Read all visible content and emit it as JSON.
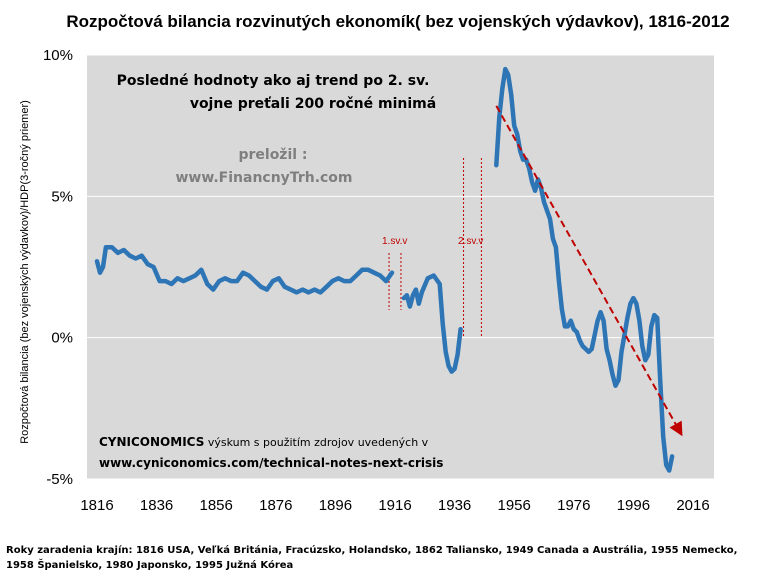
{
  "chart_data": {
    "type": "line",
    "title": "Rozpočtová bilancia rozvinutých ekonomík( bez vojenských výdavkov), 1816-2012",
    "ylabel": "Rozpočtová bilancia (bez vojenských výdavkov)/HDP(3-ročný priemer)",
    "xlabel": "",
    "xlim": [
      1816,
      2016
    ],
    "ylim": [
      -5,
      10
    ],
    "x_ticks": [
      "1816",
      "1836",
      "1856",
      "1876",
      "1896",
      "1916",
      "1936",
      "1956",
      "1976",
      "1996",
      "2016"
    ],
    "y_ticks": [
      "10%",
      "5%",
      "0%",
      "-5%"
    ],
    "grid": "horizontal",
    "background": "#d9d9d9",
    "line_color": "#2e75b6",
    "trend_color": "#c00000",
    "series": [
      {
        "values": [
          {
            "x": 1816,
            "y": 2.7
          },
          {
            "x": 1817,
            "y": 2.3
          },
          {
            "x": 1818,
            "y": 2.5
          },
          {
            "x": 1819,
            "y": 3.2
          },
          {
            "x": 1821,
            "y": 3.2
          },
          {
            "x": 1823,
            "y": 3.0
          },
          {
            "x": 1825,
            "y": 3.1
          },
          {
            "x": 1827,
            "y": 2.9
          },
          {
            "x": 1829,
            "y": 2.8
          },
          {
            "x": 1831,
            "y": 2.9
          },
          {
            "x": 1833,
            "y": 2.6
          },
          {
            "x": 1835,
            "y": 2.5
          },
          {
            "x": 1837,
            "y": 2.0
          },
          {
            "x": 1839,
            "y": 2.0
          },
          {
            "x": 1841,
            "y": 1.9
          },
          {
            "x": 1843,
            "y": 2.1
          },
          {
            "x": 1845,
            "y": 2.0
          },
          {
            "x": 1847,
            "y": 2.1
          },
          {
            "x": 1849,
            "y": 2.2
          },
          {
            "x": 1851,
            "y": 2.4
          },
          {
            "x": 1853,
            "y": 1.9
          },
          {
            "x": 1855,
            "y": 1.7
          },
          {
            "x": 1857,
            "y": 2.0
          },
          {
            "x": 1859,
            "y": 2.1
          },
          {
            "x": 1861,
            "y": 2.0
          },
          {
            "x": 1863,
            "y": 2.0
          },
          {
            "x": 1865,
            "y": 2.3
          },
          {
            "x": 1867,
            "y": 2.2
          },
          {
            "x": 1869,
            "y": 2.0
          },
          {
            "x": 1871,
            "y": 1.8
          },
          {
            "x": 1873,
            "y": 1.7
          },
          {
            "x": 1875,
            "y": 2.0
          },
          {
            "x": 1877,
            "y": 2.1
          },
          {
            "x": 1879,
            "y": 1.8
          },
          {
            "x": 1881,
            "y": 1.7
          },
          {
            "x": 1883,
            "y": 1.6
          },
          {
            "x": 1885,
            "y": 1.7
          },
          {
            "x": 1887,
            "y": 1.6
          },
          {
            "x": 1889,
            "y": 1.7
          },
          {
            "x": 1891,
            "y": 1.6
          },
          {
            "x": 1893,
            "y": 1.8
          },
          {
            "x": 1895,
            "y": 2.0
          },
          {
            "x": 1897,
            "y": 2.1
          },
          {
            "x": 1899,
            "y": 2.0
          },
          {
            "x": 1901,
            "y": 2.0
          },
          {
            "x": 1903,
            "y": 2.2
          },
          {
            "x": 1905,
            "y": 2.4
          },
          {
            "x": 1907,
            "y": 2.4
          },
          {
            "x": 1909,
            "y": 2.3
          },
          {
            "x": 1911,
            "y": 2.2
          },
          {
            "x": 1913,
            "y": 2.0
          },
          {
            "x": 1915,
            "y": 2.3
          }
        ]
      },
      {
        "values": [
          {
            "x": 1919,
            "y": 1.4
          },
          {
            "x": 1920,
            "y": 1.5
          },
          {
            "x": 1921,
            "y": 1.1
          },
          {
            "x": 1922,
            "y": 1.5
          },
          {
            "x": 1923,
            "y": 1.7
          },
          {
            "x": 1924,
            "y": 1.2
          },
          {
            "x": 1925,
            "y": 1.6
          },
          {
            "x": 1927,
            "y": 2.1
          },
          {
            "x": 1929,
            "y": 2.2
          },
          {
            "x": 1931,
            "y": 1.9
          },
          {
            "x": 1932,
            "y": 0.5
          },
          {
            "x": 1933,
            "y": -0.5
          },
          {
            "x": 1934,
            "y": -1.0
          },
          {
            "x": 1935,
            "y": -1.2
          },
          {
            "x": 1936,
            "y": -1.1
          },
          {
            "x": 1937,
            "y": -0.6
          },
          {
            "x": 1938,
            "y": 0.3
          }
        ]
      },
      {
        "values": [
          {
            "x": 1950,
            "y": 6.1
          },
          {
            "x": 1951,
            "y": 7.8
          },
          {
            "x": 1952,
            "y": 8.8
          },
          {
            "x": 1953,
            "y": 9.5
          },
          {
            "x": 1954,
            "y": 9.3
          },
          {
            "x": 1955,
            "y": 8.6
          },
          {
            "x": 1956,
            "y": 7.5
          },
          {
            "x": 1957,
            "y": 7.2
          },
          {
            "x": 1958,
            "y": 6.6
          },
          {
            "x": 1959,
            "y": 6.3
          },
          {
            "x": 1960,
            "y": 6.3
          },
          {
            "x": 1961,
            "y": 6.0
          },
          {
            "x": 1962,
            "y": 5.5
          },
          {
            "x": 1963,
            "y": 5.2
          },
          {
            "x": 1964,
            "y": 5.6
          },
          {
            "x": 1965,
            "y": 5.3
          },
          {
            "x": 1966,
            "y": 4.8
          },
          {
            "x": 1967,
            "y": 4.5
          },
          {
            "x": 1968,
            "y": 4.2
          },
          {
            "x": 1969,
            "y": 3.5
          },
          {
            "x": 1970,
            "y": 3.2
          },
          {
            "x": 1971,
            "y": 2.0
          },
          {
            "x": 1972,
            "y": 1.0
          },
          {
            "x": 1973,
            "y": 0.4
          },
          {
            "x": 1974,
            "y": 0.4
          },
          {
            "x": 1975,
            "y": 0.6
          },
          {
            "x": 1976,
            "y": 0.3
          },
          {
            "x": 1977,
            "y": 0.2
          },
          {
            "x": 1978,
            "y": -0.1
          },
          {
            "x": 1979,
            "y": -0.3
          },
          {
            "x": 1980,
            "y": -0.4
          },
          {
            "x": 1981,
            "y": -0.5
          },
          {
            "x": 1982,
            "y": -0.4
          },
          {
            "x": 1983,
            "y": 0.1
          },
          {
            "x": 1984,
            "y": 0.6
          },
          {
            "x": 1985,
            "y": 0.9
          },
          {
            "x": 1986,
            "y": 0.6
          },
          {
            "x": 1987,
            "y": -0.4
          },
          {
            "x": 1988,
            "y": -0.8
          },
          {
            "x": 1989,
            "y": -1.3
          },
          {
            "x": 1990,
            "y": -1.7
          },
          {
            "x": 1991,
            "y": -1.5
          },
          {
            "x": 1992,
            "y": -0.5
          },
          {
            "x": 1993,
            "y": 0.1
          },
          {
            "x": 1994,
            "y": 0.7
          },
          {
            "x": 1995,
            "y": 1.2
          },
          {
            "x": 1996,
            "y": 1.4
          },
          {
            "x": 1997,
            "y": 1.2
          },
          {
            "x": 1998,
            "y": 0.6
          },
          {
            "x": 1999,
            "y": -0.3
          },
          {
            "x": 2000,
            "y": -0.8
          },
          {
            "x": 2001,
            "y": -0.6
          },
          {
            "x": 2002,
            "y": 0.4
          },
          {
            "x": 2003,
            "y": 0.8
          },
          {
            "x": 2004,
            "y": 0.7
          },
          {
            "x": 2005,
            "y": -1.5
          },
          {
            "x": 2006,
            "y": -3.5
          },
          {
            "x": 2007,
            "y": -4.5
          },
          {
            "x": 2008,
            "y": -4.7
          },
          {
            "x": 2009,
            "y": -4.2
          }
        ]
      }
    ],
    "trend_line": {
      "x": [
        1950,
        2012
      ],
      "y": [
        8.2,
        -3.4
      ]
    },
    "war_markers": [
      {
        "label": "1.sv.v",
        "lines": [
          1914,
          1918
        ]
      },
      {
        "label": "2.sv.v",
        "lines": [
          1939,
          1945
        ]
      }
    ],
    "annotations": {
      "headline_1": "Posledné hodnoty ako aj trend po 2. sv.",
      "headline_2": "vojne preťali 200 ročné minimá",
      "translator_1": "preložil :",
      "translator_2": "www.FinancnyTrh.com",
      "credit_name": "CYNICONOMICS",
      "credit_text": " výskum s použitím zdrojov uvedených v",
      "credit_url": "www.cyniconomics.com/technical-notes-next-crisis"
    }
  },
  "footnote": "Roky zaradenia krajín: 1816 USA, Veľká Británia, Fracúzsko, Holandsko, 1862 Taliansko, 1949 Canada a Austrália, 1955 Nemecko, 1958 Španielsko, 1980 Japonsko, 1995 Južná Kórea"
}
